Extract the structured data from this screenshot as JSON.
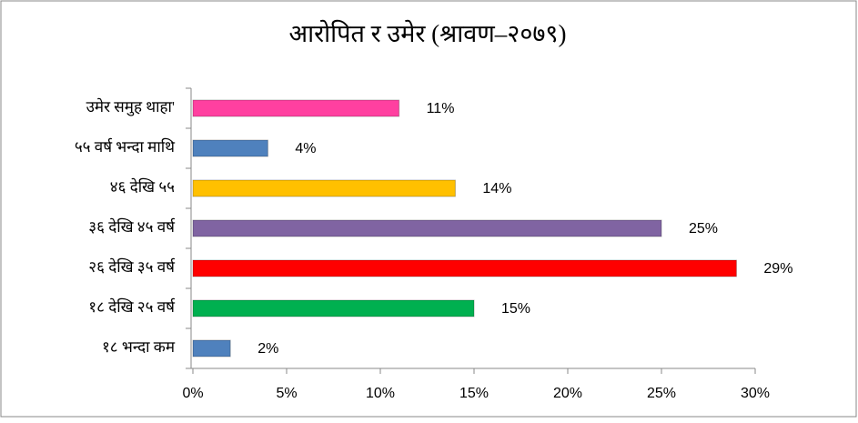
{
  "chart_data": {
    "type": "bar",
    "orientation": "horizontal",
    "title": "आरोपित र उमेर (श्रावण–२०७९)",
    "categories": [
      "उमेर समुह थाहा'",
      "५५ वर्ष भन्दा माथि",
      "४६ देखि ५५",
      "३६ देखि ४५ वर्ष",
      "२६ देखि ३५ वर्ष",
      "१८ देखि २५ वर्ष",
      "१८ भन्दा कम"
    ],
    "values": [
      11,
      4,
      14,
      25,
      29,
      15,
      2
    ],
    "value_labels": [
      "11%",
      "4%",
      "14%",
      "25%",
      "29%",
      "15%",
      "2%"
    ],
    "colors": [
      "#ff40a0",
      "#4f81bd",
      "#ffc000",
      "#8064a2",
      "#ff0000",
      "#00b050",
      "#4f81bd"
    ],
    "xlim": [
      0,
      30
    ],
    "xticks": [
      {
        "value": 0,
        "label": "0%"
      },
      {
        "value": 5,
        "label": "5%"
      },
      {
        "value": 10,
        "label": "10%"
      },
      {
        "value": 15,
        "label": "15%"
      },
      {
        "value": 20,
        "label": "20%"
      },
      {
        "value": 25,
        "label": "25%"
      },
      {
        "value": 30,
        "label": "30%"
      }
    ],
    "grid": false
  }
}
